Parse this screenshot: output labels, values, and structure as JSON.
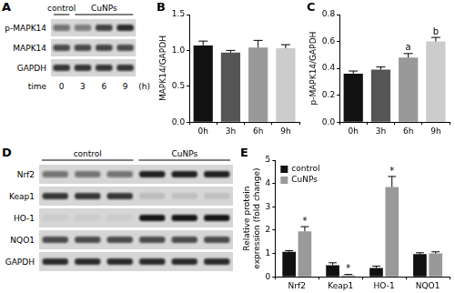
{
  "chart_data": [
    {
      "panel": "B",
      "type": "bar",
      "categories": [
        "0h",
        "3h",
        "6h",
        "9h"
      ],
      "values": [
        1.07,
        0.97,
        1.04,
        1.03
      ],
      "errors": [
        0.06,
        0.03,
        0.1,
        0.05
      ],
      "colors": [
        "#111111",
        "#555555",
        "#999999",
        "#cccccc"
      ],
      "y_label": "MAPK14/GAPDH",
      "ylim": [
        0,
        1.5
      ],
      "yticks": [
        {
          "value": 0,
          "label": "0.0"
        },
        0.5,
        {
          "value": 1,
          "label": "1.0"
        },
        1.5
      ],
      "grid": false
    },
    {
      "panel": "C",
      "type": "bar",
      "categories": [
        "0h",
        "3h",
        "6h",
        "9h"
      ],
      "values": [
        0.36,
        0.39,
        0.48,
        0.6
      ],
      "errors": [
        0.02,
        0.02,
        0.03,
        0.03
      ],
      "colors": [
        "#111111",
        "#555555",
        "#999999",
        "#cccccc"
      ],
      "y_label": "p-MAPK14/GAPDH",
      "ylim": [
        0,
        0.8
      ],
      "yticks": [
        {
          "value": 0,
          "label": "0.0"
        },
        0.2,
        0.4,
        0.6,
        0.8
      ],
      "annotations": [
        {
          "category": "6h",
          "text": "a"
        },
        {
          "category": "9h",
          "text": "b"
        }
      ],
      "grid": false
    },
    {
      "panel": "E",
      "type": "bar",
      "categories": [
        "Nrf2",
        "Keap1",
        "HO-1",
        "NQO1"
      ],
      "series": [
        {
          "name": "control",
          "color": "#111111",
          "values": [
            1.07,
            0.5,
            0.38,
            0.97
          ],
          "errors": [
            0.05,
            0.1,
            0.08,
            0.06
          ]
        },
        {
          "name": "CuNPs",
          "color": "#999999",
          "values": [
            1.95,
            0.07,
            3.85,
            1.0
          ],
          "errors": [
            0.2,
            0.03,
            0.45,
            0.07
          ]
        }
      ],
      "y_label": [
        "Relative protein",
        "expression (fold change)"
      ],
      "ylim": [
        0,
        5
      ],
      "yticks": [
        0,
        1,
        2,
        3,
        4,
        5
      ],
      "annotations": [
        {
          "category": "Nrf2",
          "series": "CuNPs",
          "text": "*"
        },
        {
          "category": "Keap1",
          "series": "CuNPs",
          "text": "*"
        },
        {
          "category": "HO-1",
          "series": "CuNPs",
          "text": "*"
        }
      ],
      "legend": "upper left",
      "grid": false
    }
  ],
  "blots": [
    {
      "panel": "A",
      "groups": [
        {
          "label": "control",
          "lanes": 1
        },
        {
          "label": "CuNPs",
          "lanes": 3
        }
      ],
      "rows": [
        {
          "label": "p-MAPK14",
          "intensity": [
            0.5,
            0.45,
            0.75,
            0.85
          ]
        },
        {
          "label": "MAPK14",
          "intensity": [
            0.7,
            0.7,
            0.72,
            0.7
          ]
        },
        {
          "label": "GAPDH",
          "intensity": [
            0.8,
            0.8,
            0.8,
            0.8
          ]
        }
      ],
      "lane_axis": {
        "title": "time",
        "labels": [
          "0",
          "3",
          "6",
          "9"
        ],
        "unit": "(h)"
      }
    },
    {
      "panel": "D",
      "groups": [
        {
          "label": "control",
          "lanes": 3
        },
        {
          "label": "CuNPs",
          "lanes": 3
        }
      ],
      "rows": [
        {
          "label": "Nrf2",
          "intensity": [
            0.5,
            0.5,
            0.5,
            0.9,
            0.9,
            0.9
          ]
        },
        {
          "label": "Keap1",
          "intensity": [
            0.8,
            0.8,
            0.8,
            0.12,
            0.1,
            0.1
          ]
        },
        {
          "label": "HO-1",
          "intensity": [
            0.05,
            0.05,
            0.05,
            0.95,
            0.95,
            0.95
          ]
        },
        {
          "label": "NQO1",
          "intensity": [
            0.7,
            0.7,
            0.7,
            0.7,
            0.7,
            0.7
          ]
        },
        {
          "label": "GAPDH",
          "intensity": [
            0.85,
            0.85,
            0.85,
            0.85,
            0.85,
            0.85
          ]
        }
      ]
    }
  ]
}
